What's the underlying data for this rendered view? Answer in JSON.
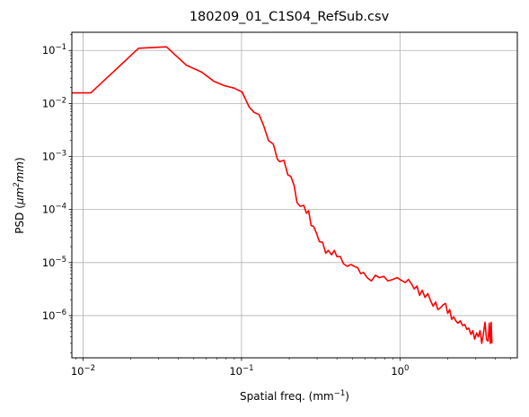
{
  "chart_data": {
    "type": "line",
    "title": "180209_01_C1S04_RefSub.csv",
    "xlabel": "Spatial freq. (mm",
    "xlabel_sup": "−1",
    "xlabel_close": ")",
    "ylabel": "PSD (",
    "ylabel_unit": "μm",
    "ylabel_sup": "2",
    "ylabel_unit2": "mm",
    "ylabel_close": ")",
    "x_scale": "log",
    "y_scale": "log",
    "xlim": [
      0.0085,
      5.5
    ],
    "ylim": [
      1.6e-07,
      0.22
    ],
    "grid": true,
    "x_ticks": [
      {
        "value": 0.01,
        "base": "10",
        "exp": "−2"
      },
      {
        "value": 0.1,
        "base": "10",
        "exp": "−1"
      },
      {
        "value": 1,
        "base": "10",
        "exp": "0"
      }
    ],
    "y_ticks": [
      {
        "value": 1e-06,
        "base": "10",
        "exp": "−6"
      },
      {
        "value": 1e-05,
        "base": "10",
        "exp": "−5"
      },
      {
        "value": 0.0001,
        "base": "10",
        "exp": "−4"
      },
      {
        "value": 0.001,
        "base": "10",
        "exp": "−3"
      },
      {
        "value": 0.01,
        "base": "10",
        "exp": "−2"
      },
      {
        "value": 0.1,
        "base": "10",
        "exp": "−1"
      }
    ],
    "series": [
      {
        "color": "#ff0000",
        "x": [
          0.0085,
          0.0112,
          0.0224,
          0.0336,
          0.0448,
          0.056,
          0.0672,
          0.0784,
          0.0896,
          0.1008,
          0.112,
          0.12,
          0.129,
          0.138,
          0.148,
          0.159,
          0.168,
          0.174,
          0.185,
          0.196,
          0.205,
          0.215,
          0.224,
          0.235,
          0.247,
          0.257,
          0.265,
          0.275,
          0.285,
          0.297,
          0.31,
          0.325,
          0.34,
          0.353,
          0.37,
          0.385,
          0.4,
          0.42,
          0.44,
          0.465,
          0.49,
          0.515,
          0.54,
          0.565,
          0.59,
          0.62,
          0.66,
          0.7,
          0.74,
          0.79,
          0.84,
          0.9,
          0.96,
          1.02,
          1.08,
          1.13,
          1.18,
          1.23,
          1.28,
          1.33,
          1.38,
          1.44,
          1.5,
          1.56,
          1.62,
          1.68,
          1.73,
          1.8,
          1.87,
          1.94,
          2.0,
          2.06,
          2.12,
          2.18,
          2.25,
          2.32,
          2.4,
          2.48,
          2.56,
          2.64,
          2.72,
          2.8,
          2.88,
          2.96,
          3.04,
          3.12,
          3.2,
          3.28,
          3.36,
          3.44,
          3.52,
          3.6,
          3.66,
          3.72,
          3.76,
          3.8
        ],
        "y": [
          0.0158,
          0.0158,
          0.11,
          0.117,
          0.053,
          0.039,
          0.026,
          0.0215,
          0.0195,
          0.0165,
          0.0085,
          0.0068,
          0.0062,
          0.0038,
          0.002,
          0.0017,
          0.0009,
          0.0008,
          0.00085,
          0.00045,
          0.00042,
          0.00028,
          0.000135,
          0.000115,
          0.00012,
          8.5e-05,
          9.5e-05,
          5e-05,
          4.8e-05,
          3.6e-05,
          2.5e-05,
          2.4e-05,
          1.5e-05,
          1.7e-05,
          1.4e-05,
          1.7e-05,
          1.3e-05,
          1.3e-05,
          9.5e-06,
          8.5e-06,
          9.2e-06,
          8.5e-06,
          8e-06,
          6.2e-06,
          6.5e-06,
          5.2e-06,
          4.5e-06,
          5.8e-06,
          5.2e-06,
          5.5e-06,
          4.5e-06,
          4.8e-06,
          5.2e-06,
          4.6e-06,
          4.2e-06,
          4.8e-06,
          4e-06,
          3.2e-06,
          3.6e-06,
          2.4e-06,
          3e-06,
          2.2e-06,
          2.6e-06,
          1.9e-06,
          1.5e-06,
          1.8e-06,
          1.3e-06,
          1.4e-06,
          1.6e-06,
          1.7e-06,
          1.1e-06,
          1.3e-06,
          8.5e-07,
          9.5e-07,
          8e-07,
          7.2e-07,
          8e-07,
          6.5e-07,
          6.8e-07,
          5.5e-07,
          5.8e-07,
          4.4e-07,
          5.2e-07,
          3.6e-07,
          4.7e-07,
          4e-07,
          5.2e-07,
          3e-07,
          4.5e-07,
          7.5e-07,
          3.5e-07,
          3.3e-07,
          7.2e-07,
          3e-07,
          7.5e-07,
          3e-07
        ]
      }
    ]
  }
}
